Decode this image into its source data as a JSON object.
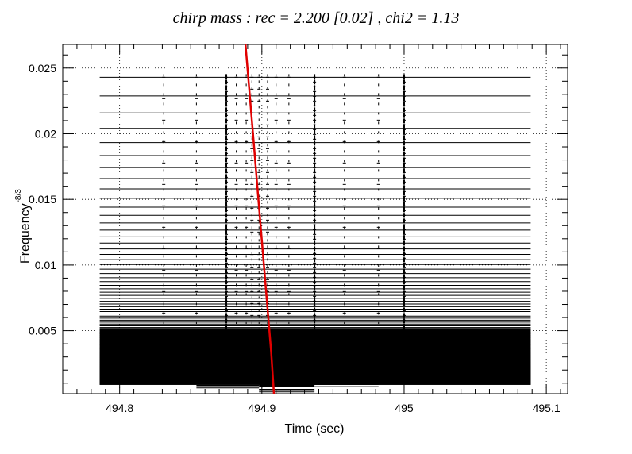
{
  "chart_data": {
    "type": "scatter",
    "title": "chirp mass : rec = 2.200 [0.02] , chi2 = 1.13",
    "xlabel": "Time (sec)",
    "ylabel": "Frequency",
    "ylabel_exponent": "-8/3",
    "xlim": [
      494.76,
      495.115
    ],
    "ylim": [
      0.0002,
      0.0268
    ],
    "x_ticks": [
      494.8,
      494.9,
      495,
      495.1
    ],
    "x_tick_labels": [
      "494.8",
      "494.9",
      "495",
      "495.1"
    ],
    "y_ticks": [
      0.005,
      0.01,
      0.015,
      0.02,
      0.025
    ],
    "y_tick_labels": [
      "0.005",
      "0.01",
      "0.015",
      "0.02",
      "0.025"
    ],
    "grid": true,
    "frequency_bands": {
      "min": 0.0009,
      "max": 0.0243,
      "count": 170,
      "x_start": 494.786,
      "x_end": 495.089
    },
    "low_band_segments": [
      {
        "x": [
          494.786,
          494.831
        ],
        "y": 0.0015
      },
      {
        "x": [
          494.831,
          494.854
        ],
        "y": 0.0013
      },
      {
        "x": [
          494.854,
          494.898
        ],
        "y": 0.001
      },
      {
        "x": [
          494.898,
          494.937
        ],
        "y": 0.0007
      },
      {
        "x": [
          494.937,
          494.982
        ],
        "y": 0.0011
      },
      {
        "x": [
          494.982,
          495.089
        ],
        "y": 0.002
      }
    ],
    "error_bar_columns": [
      {
        "x": 494.831,
        "density": "low"
      },
      {
        "x": 494.854,
        "density": "low"
      },
      {
        "x": 494.875,
        "density": "high"
      },
      {
        "x": 494.882,
        "density": "low"
      },
      {
        "x": 494.889,
        "density": "low"
      },
      {
        "x": 494.893,
        "density": "medium"
      },
      {
        "x": 494.898,
        "density": "medium"
      },
      {
        "x": 494.904,
        "density": "medium"
      },
      {
        "x": 494.91,
        "density": "low"
      },
      {
        "x": 494.919,
        "density": "low"
      },
      {
        "x": 494.937,
        "density": "high"
      },
      {
        "x": 494.958,
        "density": "low"
      },
      {
        "x": 494.982,
        "density": "low"
      },
      {
        "x": 495.0,
        "density": "high"
      }
    ],
    "series": [
      {
        "type": "line",
        "color": "#e00000",
        "x": [
          494.8885,
          494.8905,
          494.8925,
          494.8945,
          494.8965,
          494.8985,
          494.9005,
          494.9025,
          494.9045,
          494.9065,
          494.9085
        ],
        "y": [
          0.0268,
          0.0242,
          0.0216,
          0.019,
          0.0164,
          0.0138,
          0.0112,
          0.0086,
          0.006,
          0.0034,
          0.0002
        ]
      }
    ]
  },
  "colors": {
    "points": "#000000",
    "fit": "#e00000",
    "grid": "#000000"
  }
}
